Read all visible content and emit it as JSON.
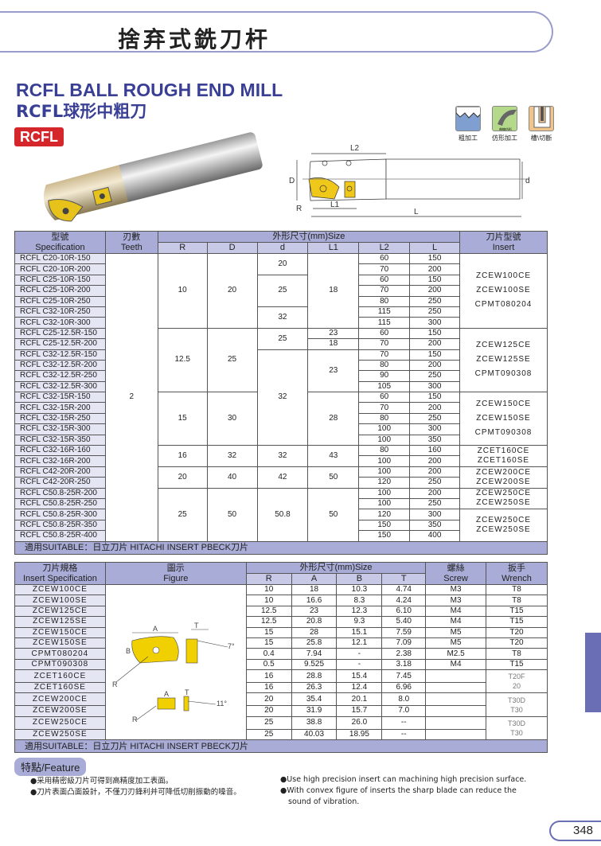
{
  "header": {
    "title": "捨弃式銑刀杆",
    "title_en": "RCFL BALL ROUGH END MILL",
    "title_cn": "RCFL球形中粗刀",
    "badge": "RCFL"
  },
  "application_icons": [
    {
      "label": "粗加工",
      "icon": "rough-machining-icon",
      "color": "#7f9fd0"
    },
    {
      "label": "仿形加工",
      "icon": "copy-milling-icon",
      "color": "#b5d98a",
      "inner_label": "曲線仿形"
    },
    {
      "label": "槽\\切斷",
      "icon": "grooving-icon",
      "color": "#f0c48a"
    }
  ],
  "diagram": {
    "labels": {
      "L2": "L2",
      "L1": "L1",
      "L": "L",
      "D": "D",
      "d": "d",
      "R": "R"
    }
  },
  "table1": {
    "headers": {
      "spec_cn": "型號",
      "spec_en": "Specification",
      "teeth_cn": "刃數",
      "teeth_en": "Teeth",
      "size": "外形尺寸(mm)Size",
      "insert_cn": "刀片型號",
      "insert_en": "Insert",
      "cols": [
        "R",
        "D",
        "d",
        "L1",
        "L2",
        "L"
      ]
    },
    "rows": [
      {
        "spec": "RCFL C20-10R-150",
        "L2": "60",
        "L": "150"
      },
      {
        "spec": "RCFL C20-10R-200",
        "L2": "70",
        "L": "200"
      },
      {
        "spec": "RCFL C25-10R-150",
        "L2": "60",
        "L": "150"
      },
      {
        "spec": "RCFL C25-10R-200",
        "L2": "70",
        "L": "200"
      },
      {
        "spec": "RCFL C25-10R-250",
        "L2": "80",
        "L": "250"
      },
      {
        "spec": "RCFL C32-10R-250",
        "L2": "115",
        "L": "250"
      },
      {
        "spec": "RCFL C32-10R-300",
        "L2": "115",
        "L": "300"
      },
      {
        "spec": "RCFL C25-12.5R-150",
        "L2": "60",
        "L": "150"
      },
      {
        "spec": "RCFL C25-12.5R-200",
        "L2": "70",
        "L": "200"
      },
      {
        "spec": "RCFL C32-12.5R-150",
        "L2": "70",
        "L": "150"
      },
      {
        "spec": "RCFL C32-12.5R-200",
        "L2": "80",
        "L": "200"
      },
      {
        "spec": "RCFL C32-12.5R-250",
        "L2": "90",
        "L": "250"
      },
      {
        "spec": "RCFL C32-12.5R-300",
        "L2": "105",
        "L": "300"
      },
      {
        "spec": "RCFL C32-15R-150",
        "L2": "60",
        "L": "150"
      },
      {
        "spec": "RCFL C32-15R-200",
        "L2": "70",
        "L": "200"
      },
      {
        "spec": "RCFL C32-15R-250",
        "L2": "80",
        "L": "250"
      },
      {
        "spec": "RCFL C32-15R-300",
        "L2": "100",
        "L": "300"
      },
      {
        "spec": "RCFL C32-15R-350",
        "L2": "100",
        "L": "350"
      },
      {
        "spec": "RCFL C32-16R-160",
        "L2": "80",
        "L": "160"
      },
      {
        "spec": "RCFL C32-16R-200",
        "L2": "100",
        "L": "200"
      },
      {
        "spec": "RCFL C42-20R-200",
        "L2": "100",
        "L": "200"
      },
      {
        "spec": "RCFL C42-20R-250",
        "L2": "120",
        "L": "250"
      },
      {
        "spec": "RCFL C50.8-25R-200",
        "L2": "100",
        "L": "200"
      },
      {
        "spec": "RCFL C50.8-25R-250",
        "L2": "100",
        "L": "250"
      },
      {
        "spec": "RCFL C50.8-25R-300",
        "L2": "120",
        "L": "300"
      },
      {
        "spec": "RCFL C50.8-25R-350",
        "L2": "150",
        "L": "350"
      },
      {
        "spec": "RCFL C50.8-25R-400",
        "L2": "150",
        "L": "400"
      }
    ],
    "teeth": "2",
    "R": [
      [
        "10",
        7
      ],
      [
        "12.5",
        6
      ],
      [
        "15",
        5
      ],
      [
        "16",
        2
      ],
      [
        "20",
        2
      ],
      [
        "25",
        5
      ]
    ],
    "D": [
      [
        "20",
        7
      ],
      [
        "25",
        6
      ],
      [
        "30",
        5
      ],
      [
        "32",
        2
      ],
      [
        "40",
        2
      ],
      [
        "50",
        5
      ]
    ],
    "d": [
      [
        "20",
        2
      ],
      [
        "25",
        3
      ],
      [
        "32",
        2
      ],
      [
        "25",
        2
      ],
      [
        "32",
        9
      ],
      [
        "32",
        2
      ],
      [
        "42",
        2
      ],
      [
        "50.8",
        5
      ]
    ],
    "L1": [
      [
        "18",
        7
      ],
      [
        "23",
        1
      ],
      [
        "18",
        1
      ],
      [
        "23",
        4
      ],
      [
        "28",
        5
      ],
      [
        "43",
        2
      ],
      [
        "50",
        2
      ],
      [
        "50",
        5
      ]
    ],
    "insert": [
      [
        [
          "ZCEW100CE",
          "ZCEW100SE",
          "CPMT080204"
        ],
        7
      ],
      [
        [
          "ZCEW125CE",
          "ZCEW125SE",
          "CPMT090308"
        ],
        6
      ],
      [
        [
          "ZCEW150CE",
          "ZCEW150SE",
          "CPMT090308"
        ],
        5
      ],
      [
        [
          "ZCET160CE",
          "ZCET160SE"
        ],
        2
      ],
      [
        [
          "ZCEW200CE",
          "ZCEW200SE"
        ],
        2
      ],
      [
        [
          "ZCEW250CE",
          "ZCEW250SE"
        ],
        2
      ],
      [
        [
          "ZCEW250CE",
          "ZCEW250SE"
        ],
        3
      ]
    ],
    "footer": "適用SUITABLE：日立刀片 HITACHI INSERT  PBECK刀片"
  },
  "table2": {
    "headers": {
      "spec_cn": "刀片規格",
      "spec_en": "Insert Specification",
      "fig_cn": "圖示",
      "fig_en": "Figure",
      "size": "外形尺寸(mm)Size",
      "cols": [
        "R",
        "A",
        "B",
        "T"
      ],
      "screw_cn": "螺絲",
      "screw_en": "Screw",
      "wrench_cn": "扳手",
      "wrench_en": "Wrench"
    },
    "rows": [
      [
        "ZCEW100CE",
        "10",
        "18",
        "10.3",
        "4.74",
        "M3"
      ],
      [
        "ZCEW100SE",
        "10",
        "16.6",
        "8.3",
        "4.24",
        "M3"
      ],
      [
        "ZCEW125CE",
        "12.5",
        "23",
        "12.3",
        "6.10",
        "M4"
      ],
      [
        "ZCEW125SE",
        "12.5",
        "20.8",
        "9.3",
        "5.40",
        "M4"
      ],
      [
        "ZCEW150CE",
        "15",
        "28",
        "15.1",
        "7.59",
        "M5"
      ],
      [
        "ZCEW150SE",
        "15",
        "25.8",
        "12.1",
        "7.09",
        "M5"
      ],
      [
        "CPMT080204",
        "0.4",
        "7.94",
        "-",
        "2.38",
        "M2.5"
      ],
      [
        "CPMT090308",
        "0.5",
        "9.525",
        "-",
        "3.18",
        "M4"
      ],
      [
        "ZCET160CE",
        "16",
        "28.8",
        "15.4",
        "7.45",
        ""
      ],
      [
        "ZCET160SE",
        "16",
        "26.3",
        "12.4",
        "6.96",
        ""
      ],
      [
        "ZCEW200CE",
        "20",
        "35.4",
        "20.1",
        "8.0",
        ""
      ],
      [
        "ZCEW200SE",
        "20",
        "31.9",
        "15.7",
        "7.0",
        ""
      ],
      [
        "ZCEW250CE",
        "25",
        "38.8",
        "26.0",
        "--",
        ""
      ],
      [
        "ZCEW250SE",
        "25",
        "40.03",
        "18.95",
        "--",
        ""
      ]
    ],
    "wrench": [
      [
        "T8",
        1
      ],
      [
        "T8",
        1
      ],
      [
        "T15",
        1
      ],
      [
        "T15",
        1
      ],
      [
        "T20",
        1
      ],
      [
        "T20",
        1
      ],
      [
        "T8",
        1
      ],
      [
        "T15",
        1
      ],
      [
        "T20F 20",
        2
      ],
      [
        "T30D T30",
        2
      ],
      [
        "T30D T30",
        2
      ]
    ],
    "figure_labels": {
      "A": "A",
      "T": "T",
      "B": "B",
      "R": "R",
      "angle1": "7°",
      "angle2": "11°"
    },
    "footer": "適用SUITABLE：日立刀片 HITACHI INSERT  PBECK刀片"
  },
  "features": {
    "title": "特點/Feature",
    "cn": [
      "●采用精密級刀片可得到高精度加工表面。",
      "●刀片表面凸面設計，不僅刀刃鋒利并可降低切削振動的噪音。"
    ],
    "en": [
      "●Use high precision insert can machining high precision surface.",
      "●With convex figure of inserts the sharp blade can reduce the",
      "sound of vibration."
    ]
  },
  "page_number": "348"
}
